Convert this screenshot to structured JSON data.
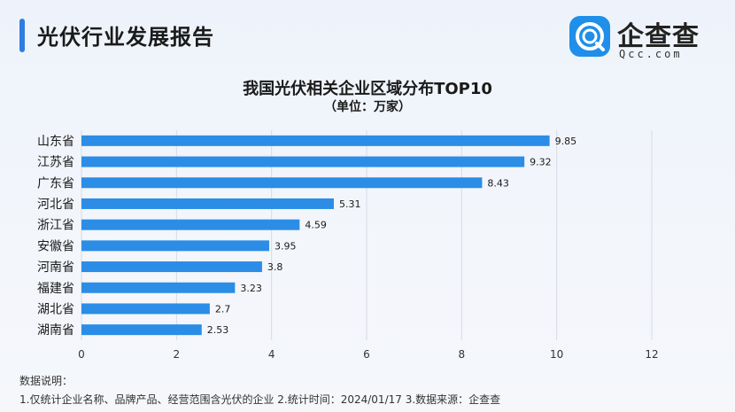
{
  "header": {
    "title": "光伏行业发展报告"
  },
  "logo": {
    "name": "企查查",
    "sub": "Qcc.com",
    "icon": "qcc-logo-icon",
    "color": "#1f8fe9"
  },
  "chart_data": {
    "type": "bar",
    "orientation": "horizontal",
    "title": "我国光伏相关企业区域分布TOP10",
    "subtitle": "（单位：万家）",
    "categories": [
      "山东省",
      "江苏省",
      "广东省",
      "河北省",
      "浙江省",
      "安徽省",
      "河南省",
      "福建省",
      "湖北省",
      "湖南省"
    ],
    "values": [
      9.85,
      9.32,
      8.43,
      5.31,
      4.59,
      3.95,
      3.8,
      3.23,
      2.7,
      2.53
    ],
    "value_labels": [
      "9.85",
      "9.32",
      "8.43",
      "5.31",
      "4.59",
      "3.95",
      "3.8",
      "3.23",
      "2.7",
      "2.53"
    ],
    "xlim": [
      0,
      12
    ],
    "xticks": [
      0,
      2,
      4,
      6,
      8,
      10,
      12
    ],
    "grid": true,
    "bar_color": "#2b8de6",
    "grid_color": "#d5dbe5"
  },
  "footer": {
    "label": "数据说明：",
    "notes": "1.仅统计企业名称、品牌产品、经营范围含光伏的企业   2.统计时间：2024/01/17   3.数据来源：企查查"
  }
}
